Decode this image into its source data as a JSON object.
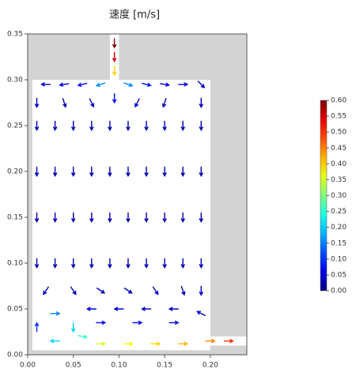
{
  "chart_data": {
    "type": "quiver",
    "title": "速度 [m/s]",
    "xlim": [
      0,
      0.24
    ],
    "ylim": [
      0,
      0.35
    ],
    "xticks": [
      {
        "value": 0,
        "label": "0.00"
      },
      {
        "value": 0.05,
        "label": "0.05"
      },
      {
        "value": 0.1,
        "label": "0.10"
      },
      {
        "value": 0.15,
        "label": "0.15"
      },
      {
        "value": 0.2,
        "label": "0.20"
      }
    ],
    "yticks": [
      {
        "value": 0,
        "label": "0.00"
      },
      {
        "value": 0.05,
        "label": "0.05"
      },
      {
        "value": 0.1,
        "label": "0.10"
      },
      {
        "value": 0.15,
        "label": "0.15"
      },
      {
        "value": 0.2,
        "label": "0.20"
      },
      {
        "value": 0.25,
        "label": "0.25"
      },
      {
        "value": 0.3,
        "label": "0.30"
      },
      {
        "value": 0.35,
        "label": "0.35"
      }
    ],
    "background": "#d3d3d3",
    "fluid_region": [
      [
        0.005,
        0.005
      ],
      [
        0.2,
        0.005
      ],
      [
        0.2,
        0.01
      ],
      [
        0.24,
        0.01
      ],
      [
        0.24,
        0.02
      ],
      [
        0.2,
        0.02
      ],
      [
        0.2,
        0.3
      ],
      [
        0.1,
        0.3
      ],
      [
        0.1,
        0.35
      ],
      [
        0.09,
        0.35
      ],
      [
        0.09,
        0.3
      ],
      [
        0.005,
        0.3
      ]
    ],
    "colormap": "jet",
    "clim": [
      0,
      0.6
    ],
    "cticks": [
      {
        "value": 0,
        "label": "0.00"
      },
      {
        "value": 0.05,
        "label": "0.05"
      },
      {
        "value": 0.1,
        "label": "0.10"
      },
      {
        "value": 0.15,
        "label": "0.15"
      },
      {
        "value": 0.2,
        "label": "0.20"
      },
      {
        "value": 0.25,
        "label": "0.25"
      },
      {
        "value": 0.3,
        "label": "0.30"
      },
      {
        "value": 0.35,
        "label": "0.35"
      },
      {
        "value": 0.4,
        "label": "0.40"
      },
      {
        "value": 0.45,
        "label": "0.45"
      },
      {
        "value": 0.5,
        "label": "0.50"
      },
      {
        "value": 0.55,
        "label": "0.55"
      },
      {
        "value": 0.6,
        "label": "0.60"
      }
    ],
    "arrows": [
      [
        0.095,
        0.34,
        0,
        -0.6
      ],
      [
        0.095,
        0.325,
        0,
        -0.55
      ],
      [
        0.095,
        0.31,
        0,
        -0.4
      ],
      [
        0.02,
        0.295,
        -0.05,
        0
      ],
      [
        0.04,
        0.295,
        -0.06,
        -0.01
      ],
      [
        0.06,
        0.295,
        -0.08,
        -0.02
      ],
      [
        0.08,
        0.295,
        -0.15,
        -0.05
      ],
      [
        0.11,
        0.295,
        0.15,
        -0.05
      ],
      [
        0.13,
        0.295,
        0.08,
        -0.02
      ],
      [
        0.15,
        0.295,
        0.06,
        -0.01
      ],
      [
        0.17,
        0.295,
        0.05,
        0
      ],
      [
        0.19,
        0.295,
        0.03,
        -0.03
      ],
      [
        0.01,
        0.275,
        0,
        -0.04
      ],
      [
        0.04,
        0.275,
        0.01,
        -0.03
      ],
      [
        0.07,
        0.275,
        0.02,
        -0.04
      ],
      [
        0.095,
        0.28,
        0,
        -0.08
      ],
      [
        0.12,
        0.275,
        -0.02,
        -0.04
      ],
      [
        0.15,
        0.275,
        -0.01,
        -0.03
      ],
      [
        0.19,
        0.275,
        0,
        -0.04
      ],
      [
        0.01,
        0.25,
        0,
        -0.03
      ],
      [
        0.03,
        0.25,
        0,
        -0.03
      ],
      [
        0.05,
        0.25,
        0,
        -0.03
      ],
      [
        0.07,
        0.25,
        0,
        -0.03
      ],
      [
        0.09,
        0.25,
        0,
        -0.03
      ],
      [
        0.11,
        0.25,
        0,
        -0.03
      ],
      [
        0.13,
        0.25,
        0,
        -0.03
      ],
      [
        0.15,
        0.25,
        0,
        -0.03
      ],
      [
        0.17,
        0.25,
        0,
        -0.03
      ],
      [
        0.19,
        0.25,
        0,
        -0.03
      ],
      [
        0.01,
        0.2,
        0,
        -0.03
      ],
      [
        0.03,
        0.2,
        0,
        -0.03
      ],
      [
        0.05,
        0.2,
        0,
        -0.03
      ],
      [
        0.07,
        0.2,
        0,
        -0.03
      ],
      [
        0.09,
        0.2,
        0,
        -0.03
      ],
      [
        0.11,
        0.2,
        0,
        -0.03
      ],
      [
        0.13,
        0.2,
        0,
        -0.03
      ],
      [
        0.15,
        0.2,
        0,
        -0.03
      ],
      [
        0.17,
        0.2,
        0,
        -0.03
      ],
      [
        0.19,
        0.2,
        0,
        -0.03
      ],
      [
        0.01,
        0.15,
        0,
        -0.03
      ],
      [
        0.03,
        0.15,
        0,
        -0.03
      ],
      [
        0.05,
        0.15,
        0,
        -0.03
      ],
      [
        0.07,
        0.15,
        0,
        -0.03
      ],
      [
        0.09,
        0.15,
        0,
        -0.03
      ],
      [
        0.11,
        0.15,
        0,
        -0.03
      ],
      [
        0.13,
        0.15,
        0,
        -0.03
      ],
      [
        0.15,
        0.15,
        0,
        -0.03
      ],
      [
        0.17,
        0.15,
        0,
        -0.03
      ],
      [
        0.19,
        0.15,
        0,
        -0.03
      ],
      [
        0.01,
        0.1,
        0,
        -0.03
      ],
      [
        0.03,
        0.1,
        0,
        -0.03
      ],
      [
        0.05,
        0.1,
        0,
        -0.03
      ],
      [
        0.07,
        0.1,
        0,
        -0.03
      ],
      [
        0.09,
        0.1,
        0,
        -0.03
      ],
      [
        0.11,
        0.1,
        0,
        -0.03
      ],
      [
        0.13,
        0.1,
        0,
        -0.03
      ],
      [
        0.15,
        0.1,
        0,
        -0.03
      ],
      [
        0.17,
        0.1,
        0,
        -0.03
      ],
      [
        0.19,
        0.1,
        0,
        -0.03
      ],
      [
        0.02,
        0.07,
        -0.02,
        -0.03
      ],
      [
        0.05,
        0.07,
        0.02,
        -0.03
      ],
      [
        0.08,
        0.07,
        0.03,
        -0.02
      ],
      [
        0.11,
        0.07,
        0.03,
        -0.02
      ],
      [
        0.14,
        0.07,
        0.02,
        -0.03
      ],
      [
        0.17,
        0.07,
        0.01,
        -0.03
      ],
      [
        0.19,
        0.07,
        0,
        -0.04
      ],
      [
        0.07,
        0.05,
        -0.05,
        0
      ],
      [
        0.1,
        0.05,
        -0.05,
        0
      ],
      [
        0.13,
        0.05,
        -0.04,
        0
      ],
      [
        0.16,
        0.05,
        -0.04,
        0
      ],
      [
        0.19,
        0.045,
        -0.04,
        0.02
      ],
      [
        0.08,
        0.035,
        0.08,
        0
      ],
      [
        0.12,
        0.035,
        0.07,
        0
      ],
      [
        0.16,
        0.035,
        0.06,
        0
      ],
      [
        0.01,
        0.03,
        0,
        0.1
      ],
      [
        0.03,
        0.045,
        0.15,
        0
      ],
      [
        0.05,
        0.03,
        0,
        -0.2
      ],
      [
        0.03,
        0.015,
        -0.2,
        0
      ],
      [
        0.06,
        0.02,
        0.25,
        -0.05
      ],
      [
        0.08,
        0.012,
        0.35,
        0
      ],
      [
        0.11,
        0.012,
        0.38,
        0
      ],
      [
        0.14,
        0.012,
        0.4,
        0
      ],
      [
        0.17,
        0.012,
        0.42,
        0
      ],
      [
        0.2,
        0.015,
        0.45,
        0
      ],
      [
        0.22,
        0.015,
        0.5,
        0
      ]
    ]
  }
}
